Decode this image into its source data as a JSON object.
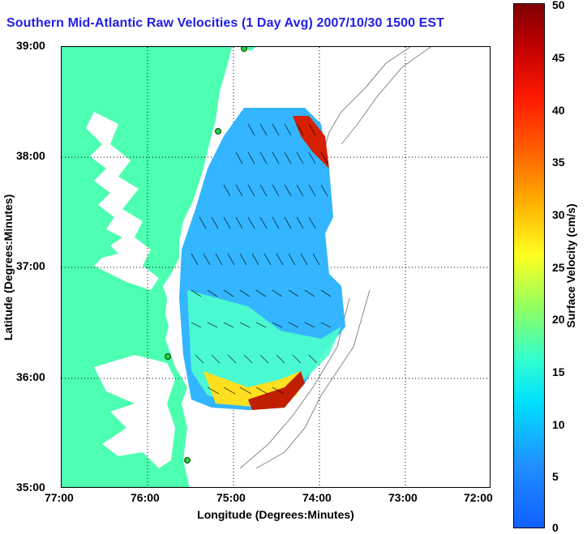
{
  "title": "Southern Mid-Atlantic Raw Velocities (1 Day Avg) 2007/10/30 1500 EST",
  "axes": {
    "xlabel": "Longitude (Degrees:Minutes)",
    "ylabel": "Latitude (Degrees:Minutes)",
    "xticks": [
      "77:00",
      "76:00",
      "75:00",
      "74:00",
      "73:00",
      "72:00"
    ],
    "yticks": [
      "39:00",
      "38:00",
      "37:00",
      "36:00",
      "35:00"
    ]
  },
  "colorbar": {
    "label": "Surface Velocity (cm/s)",
    "ticks": [
      "50",
      "45",
      "40",
      "35",
      "30",
      "25",
      "20",
      "15",
      "10",
      "5",
      "0"
    ],
    "min": 0,
    "max": 50
  },
  "colors": {
    "land": "#4dffb0",
    "title": "#1f1fe6",
    "station": "#2ecc40"
  }
}
